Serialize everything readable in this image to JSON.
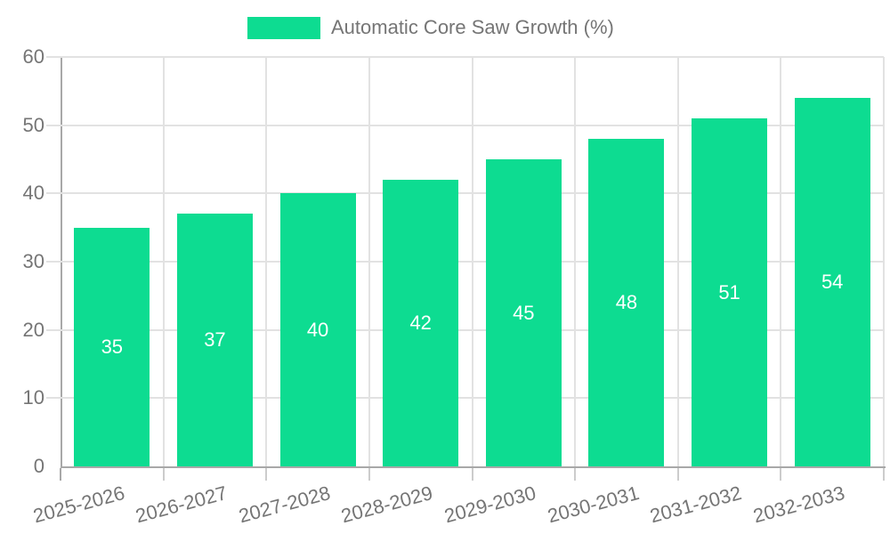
{
  "legend": {
    "label": "Automatic Core Saw Growth (%)"
  },
  "colors": {
    "bar": "#0ddc91",
    "grid": "#e2e2e2",
    "axis": "#a8a8a8",
    "x_tick": "#cccccc",
    "tick_text": "#757575",
    "value_label": "#ffffff",
    "background": "#ffffff"
  },
  "chart_data": {
    "type": "bar",
    "title": "Automatic Core Saw Growth (%)",
    "categories": [
      "2025-2026",
      "2026-2027",
      "2027-2028",
      "2028-2029",
      "2029-2030",
      "2030-2031",
      "2031-2032",
      "2032-2033"
    ],
    "values": [
      35,
      37,
      40,
      42,
      45,
      48,
      51,
      54
    ],
    "series": [
      {
        "name": "Automatic Core Saw Growth (%)",
        "values": [
          35,
          37,
          40,
          42,
          45,
          48,
          51,
          54
        ]
      }
    ],
    "xlabel": "",
    "ylabel": "",
    "ylim": [
      0,
      60
    ],
    "yticks": [
      0,
      10,
      20,
      30,
      40,
      50,
      60
    ],
    "grid": true,
    "legend_position": "top-center",
    "x_tick_rotation_deg": -15,
    "value_labels_position": "inside-center"
  }
}
